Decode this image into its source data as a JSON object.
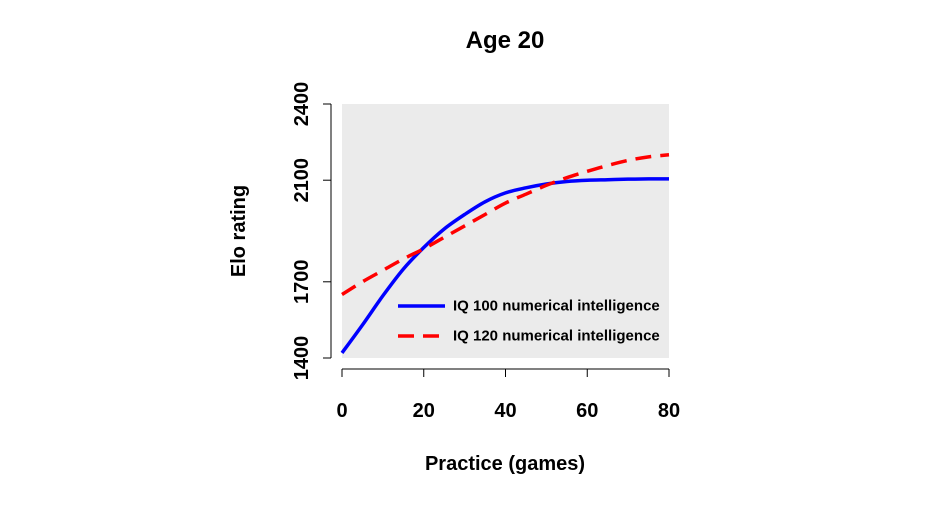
{
  "colors": {
    "panel_background": "#ebebeb",
    "iq100": "#0000ff",
    "iq120": "#ff0000"
  },
  "chart_data": {
    "type": "line",
    "title": "Age 20",
    "xlabel": "Practice (games)",
    "ylabel": "Elo rating",
    "xlim": [
      0,
      80
    ],
    "ylim": [
      1400,
      2400
    ],
    "x_ticks": [
      0,
      20,
      40,
      60,
      80
    ],
    "x_tick_labels": [
      "0",
      "20",
      "40",
      "60",
      "80"
    ],
    "y_ticks": [
      1400,
      1700,
      2100,
      2400
    ],
    "y_tick_labels": [
      "1400",
      "1700",
      "2100",
      "2400"
    ],
    "grid": false,
    "legend_position": "bottom-right",
    "x": [
      0,
      5,
      10,
      15,
      20,
      25,
      30,
      35,
      40,
      45,
      50,
      55,
      60,
      65,
      70,
      75,
      80
    ],
    "series": [
      {
        "name": "IQ 100 numerical intelligence",
        "color": "#0000ff",
        "style": "solid",
        "values": [
          1420,
          1530,
          1645,
          1750,
          1835,
          1908,
          1965,
          2015,
          2050,
          2070,
          2085,
          2095,
          2100,
          2102,
          2104,
          2105,
          2105
        ]
      },
      {
        "name": "IQ 120 numerical intelligence",
        "color": "#ff0000",
        "style": "dashed",
        "values": [
          1650,
          1700,
          1745,
          1790,
          1830,
          1875,
          1920,
          1965,
          2010,
          2045,
          2080,
          2110,
          2135,
          2158,
          2178,
          2192,
          2200
        ]
      }
    ]
  }
}
